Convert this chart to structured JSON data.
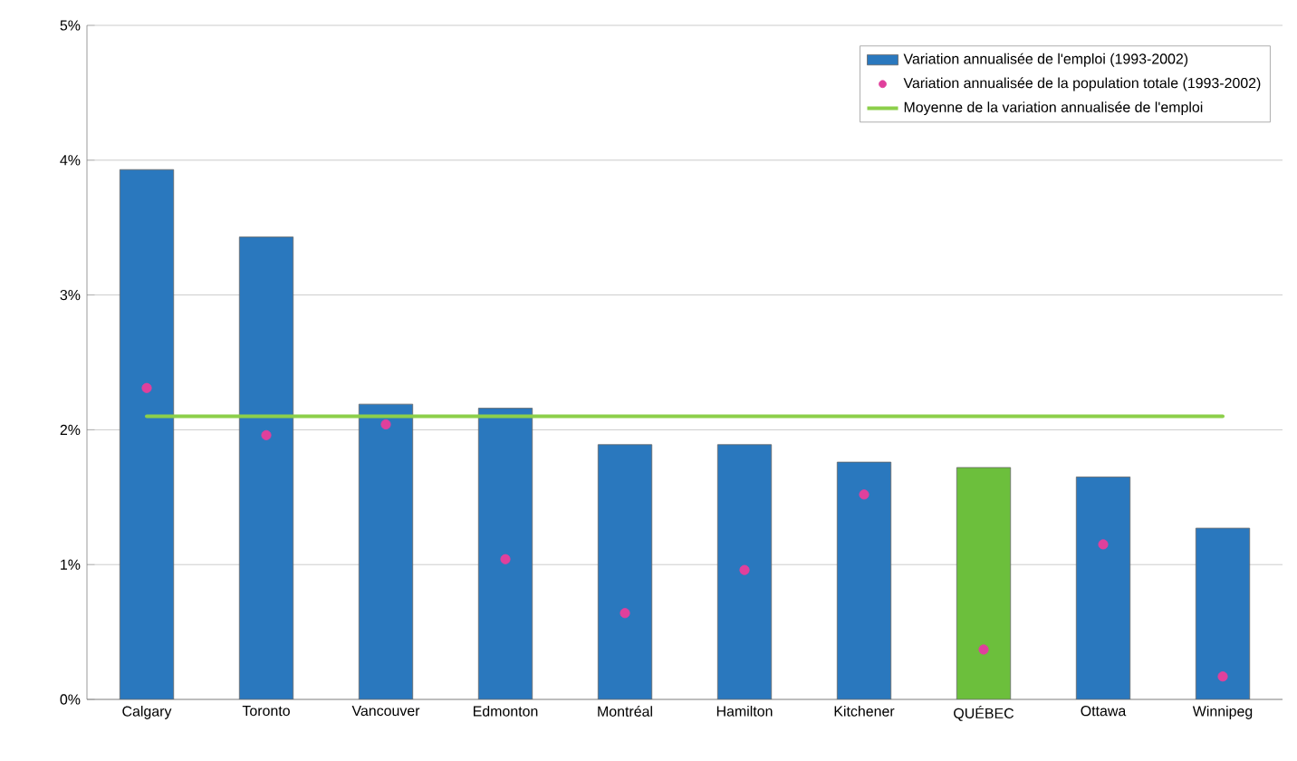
{
  "chart_data": {
    "type": "bar",
    "categories": [
      "Calgary",
      "Toronto",
      "Vancouver",
      "Edmonton",
      "Montréal",
      "Hamilton",
      "Kitchener",
      "QUÉBEC",
      "Ottawa",
      "Winnipeg"
    ],
    "series": [
      {
        "name": "Variation annualisée de l'emploi (1993-2002)",
        "type": "bar",
        "colors": [
          "#2a78be",
          "#2a78be",
          "#2a78be",
          "#2a78be",
          "#2a78be",
          "#2a78be",
          "#2a78be",
          "#6cbf3c",
          "#2a78be",
          "#2a78be"
        ],
        "values": [
          3.93,
          3.43,
          2.19,
          2.16,
          1.89,
          1.89,
          1.76,
          1.72,
          1.65,
          1.27
        ]
      },
      {
        "name": "Variation annualisée de la population totale (1993-2002)",
        "type": "scatter",
        "color": "#e0409c",
        "values": [
          2.31,
          1.96,
          2.04,
          1.04,
          0.64,
          0.96,
          1.52,
          0.37,
          1.15,
          0.17
        ]
      },
      {
        "name": "Moyenne de la variation annualisée de l'emploi",
        "type": "line",
        "color": "#8ccf4a",
        "line_style": "solid",
        "values": [
          2.1,
          2.1,
          2.1,
          2.1,
          2.1,
          2.1,
          2.1,
          2.1,
          2.1,
          2.1
        ]
      }
    ],
    "ylim": [
      0,
      5
    ],
    "yticks": [
      {
        "value": 0,
        "label": "0%"
      },
      {
        "value": 1,
        "label": "1%"
      },
      {
        "value": 2,
        "label": "2%"
      },
      {
        "value": 3,
        "label": "3%"
      },
      {
        "value": 4,
        "label": "4%"
      },
      {
        "value": 5,
        "label": "5%"
      }
    ],
    "grid": "y",
    "legend": "top right"
  }
}
